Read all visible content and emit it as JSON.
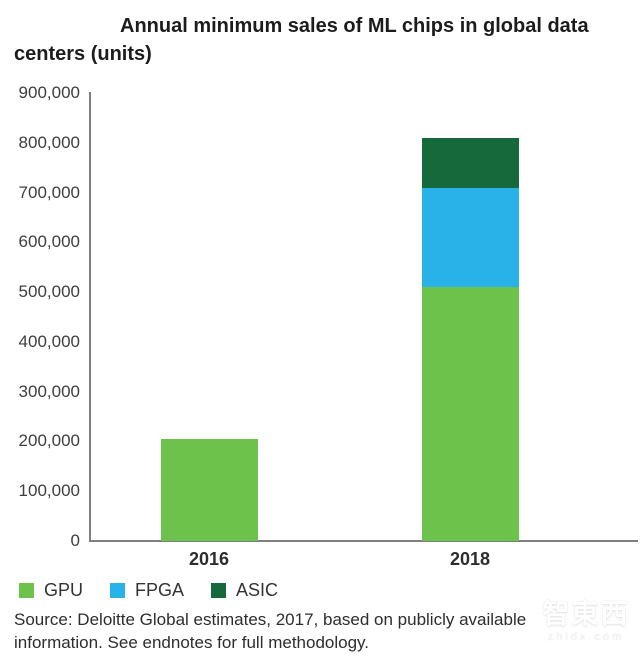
{
  "title": "Annual minimum sales of ML chips in global data centers (units)",
  "source_note": "Source: Deloitte Global estimates, 2017, based on publicly available information. See endnotes for full methodology.",
  "watermark": {
    "brand": "智東西",
    "domain": "zhidx.com"
  },
  "colors": {
    "gpu": "#6CC24A",
    "fpga": "#29B2E8",
    "asic": "#16693A",
    "axis": "#7F7F7F",
    "title_text": "#1C1C1C",
    "tick_text": "#3E3E3E"
  },
  "chart_data": {
    "type": "bar",
    "stacked": true,
    "title": "Annual minimum sales of ML chips in global data centers (units)",
    "categories": [
      "2016",
      "2018"
    ],
    "series": [
      {
        "name": "GPU",
        "color": "#6CC24A",
        "values": [
          205000,
          510000
        ]
      },
      {
        "name": "FPGA",
        "color": "#29B2E8",
        "values": [
          0,
          200000
        ]
      },
      {
        "name": "ASIC",
        "color": "#16693A",
        "values": [
          0,
          100000
        ]
      }
    ],
    "totals": [
      205000,
      810000
    ],
    "xlabel": "",
    "ylabel": "",
    "ylim": [
      0,
      900000
    ],
    "ytick_step": 100000,
    "ytick_labels": [
      "0",
      "100,000",
      "200,000",
      "300,000",
      "400,000",
      "500,000",
      "600,000",
      "700,000",
      "800,000",
      "900,000"
    ],
    "grid": false,
    "legend_position": "bottom-left"
  }
}
